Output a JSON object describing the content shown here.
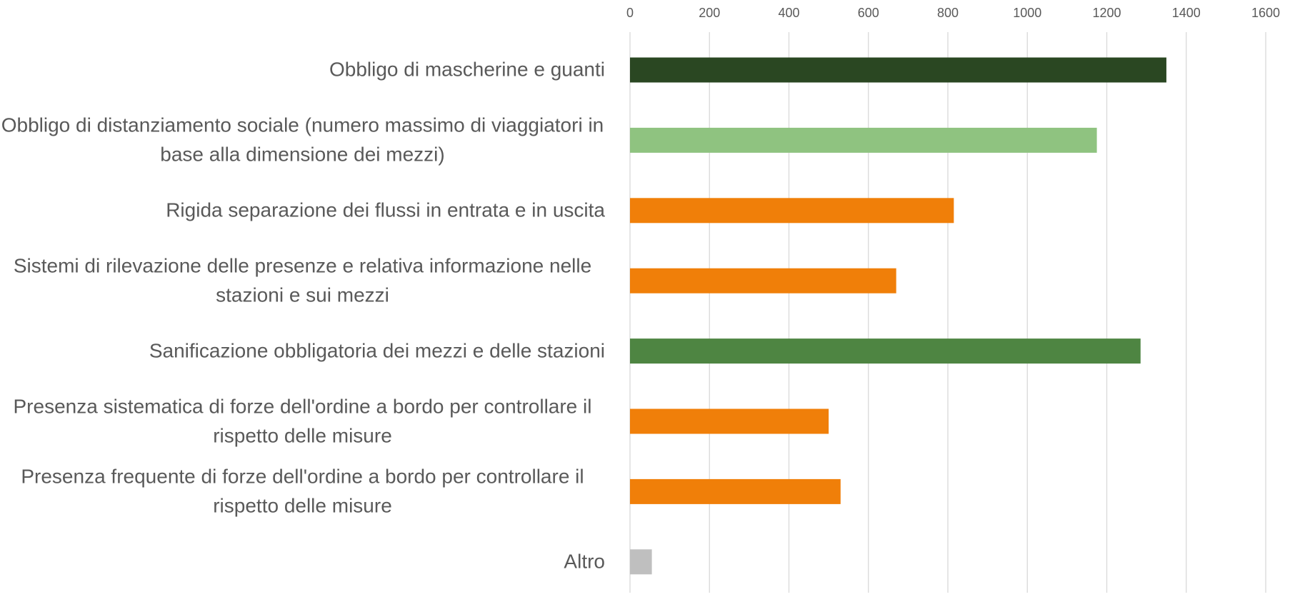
{
  "chart_data": {
    "type": "bar",
    "orientation": "horizontal",
    "categories": [
      "Obbligo di mascherine e guanti",
      "Obbligo di distanziamento sociale (numero massimo di viaggiatori in base alla dimensione dei mezzi)",
      "Rigida separazione dei flussi in entrata e in uscita",
      "Sistemi di rilevazione delle presenze e relativa informazione nelle stazioni e sui mezzi",
      "Sanificazione obbligatoria dei mezzi e delle stazioni",
      "Presenza sistematica di forze dell'ordine a bordo per controllare il rispetto delle misure",
      "Presenza frequente di forze dell'ordine a bordo per controllare il rispetto delle misure",
      "Altro"
    ],
    "values": [
      1350,
      1175,
      815,
      670,
      1285,
      500,
      530,
      55
    ],
    "colors": [
      "#2a4722",
      "#8fc380",
      "#f07f09",
      "#f07f09",
      "#4e8542",
      "#f07f09",
      "#f07f09",
      "#bfbfbf"
    ],
    "xlim": [
      0,
      1600
    ],
    "xticks": [
      0,
      200,
      400,
      600,
      800,
      1000,
      1200,
      1400,
      1600
    ],
    "grid": true
  }
}
